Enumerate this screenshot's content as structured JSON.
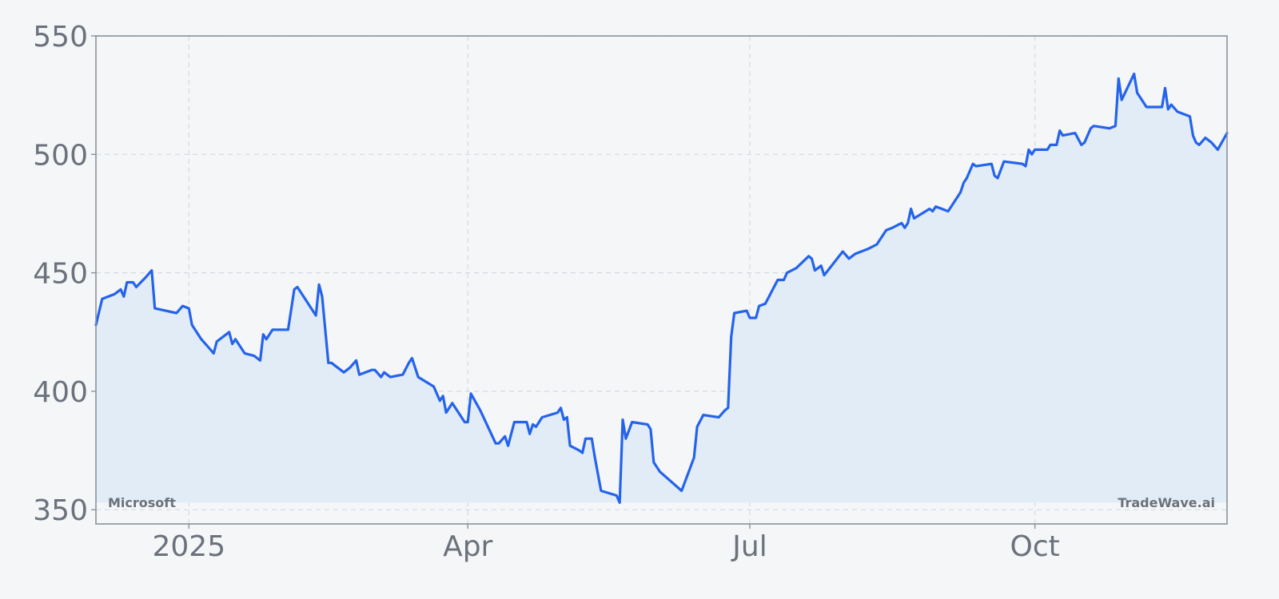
{
  "chart_data": {
    "type": "area",
    "title": "",
    "xlabel": "",
    "ylabel": "",
    "x_ticks": [
      "2025",
      "Apr",
      "Jul",
      "Oct"
    ],
    "x_tick_dates": [
      "2025-01-01",
      "2025-04-01",
      "2025-07-01",
      "2025-10-01"
    ],
    "xlim": [
      "2024-12-02",
      "2025-12-02"
    ],
    "y_ticks": [
      350,
      400,
      450,
      500,
      550
    ],
    "ylim": [
      344,
      550
    ],
    "grid": true,
    "annotations": {
      "left": "Microsoft",
      "right": "TradeWave.ai"
    },
    "colors": {
      "line": "#2563eb",
      "fill": "#e1ecf7",
      "axis": "#8a929c",
      "tick_text": "#6b727c",
      "grid": "#d4dae1",
      "background": "#f4f6f8"
    },
    "series": [
      {
        "values": [
          [
            "2024-12-02",
            428
          ],
          [
            "2024-12-04",
            439
          ],
          [
            "2024-12-08",
            441
          ],
          [
            "2024-12-10",
            443
          ],
          [
            "2024-12-11",
            440
          ],
          [
            "2024-12-12",
            446
          ],
          [
            "2024-12-14",
            446
          ],
          [
            "2024-12-15",
            444
          ],
          [
            "2024-12-18",
            448
          ],
          [
            "2024-12-20",
            451
          ],
          [
            "2024-12-21",
            435
          ],
          [
            "2024-12-28",
            433
          ],
          [
            "2024-12-30",
            436
          ],
          [
            "2025-01-01",
            435
          ],
          [
            "2025-01-02",
            428
          ],
          [
            "2025-01-05",
            422
          ],
          [
            "2025-01-07",
            419
          ],
          [
            "2025-01-09",
            416
          ],
          [
            "2025-01-10",
            421
          ],
          [
            "2025-01-14",
            425
          ],
          [
            "2025-01-15",
            420
          ],
          [
            "2025-01-16",
            422
          ],
          [
            "2025-01-19",
            416
          ],
          [
            "2025-01-22",
            415
          ],
          [
            "2025-01-24",
            413
          ],
          [
            "2025-01-25",
            424
          ],
          [
            "2025-01-26",
            422
          ],
          [
            "2025-01-28",
            426
          ],
          [
            "2025-02-02",
            426
          ],
          [
            "2025-02-04",
            443
          ],
          [
            "2025-02-05",
            444
          ],
          [
            "2025-02-11",
            432
          ],
          [
            "2025-02-12",
            445
          ],
          [
            "2025-02-13",
            440
          ],
          [
            "2025-02-15",
            412
          ],
          [
            "2025-02-16",
            412
          ],
          [
            "2025-02-20",
            408
          ],
          [
            "2025-02-22",
            410
          ],
          [
            "2025-02-24",
            413
          ],
          [
            "2025-02-25",
            407
          ],
          [
            "2025-03-01",
            409
          ],
          [
            "2025-03-02",
            409
          ],
          [
            "2025-03-04",
            406
          ],
          [
            "2025-03-05",
            408
          ],
          [
            "2025-03-07",
            406
          ],
          [
            "2025-03-11",
            407
          ],
          [
            "2025-03-13",
            412
          ],
          [
            "2025-03-14",
            414
          ],
          [
            "2025-03-16",
            406
          ],
          [
            "2025-03-21",
            402
          ],
          [
            "2025-03-23",
            396
          ],
          [
            "2025-03-24",
            398
          ],
          [
            "2025-03-25",
            391
          ],
          [
            "2025-03-27",
            395
          ],
          [
            "2025-03-31",
            387
          ],
          [
            "2025-04-01",
            387
          ],
          [
            "2025-04-02",
            399
          ],
          [
            "2025-04-05",
            392
          ],
          [
            "2025-04-10",
            378
          ],
          [
            "2025-04-11",
            378
          ],
          [
            "2025-04-13",
            381
          ],
          [
            "2025-04-14",
            377
          ],
          [
            "2025-04-16",
            387
          ],
          [
            "2025-04-20",
            387
          ],
          [
            "2025-04-21",
            382
          ],
          [
            "2025-04-22",
            386
          ],
          [
            "2025-04-23",
            385
          ],
          [
            "2025-04-25",
            389
          ],
          [
            "2025-04-30",
            391
          ],
          [
            "2025-05-01",
            393
          ],
          [
            "2025-05-02",
            388
          ],
          [
            "2025-05-03",
            389
          ],
          [
            "2025-05-04",
            377
          ],
          [
            "2025-05-07",
            375
          ],
          [
            "2025-05-08",
            374
          ],
          [
            "2025-05-09",
            380
          ],
          [
            "2025-05-11",
            380
          ],
          [
            "2025-05-12",
            372
          ],
          [
            "2025-05-14",
            358
          ],
          [
            "2025-05-19",
            356
          ],
          [
            "2025-05-20",
            353
          ],
          [
            "2025-05-21",
            388
          ],
          [
            "2025-05-22",
            380
          ],
          [
            "2025-05-24",
            387
          ],
          [
            "2025-05-29",
            386
          ],
          [
            "2025-05-30",
            384
          ],
          [
            "2025-05-31",
            370
          ],
          [
            "2025-06-02",
            366
          ],
          [
            "2025-06-09",
            358
          ],
          [
            "2025-06-13",
            372
          ],
          [
            "2025-06-14",
            385
          ],
          [
            "2025-06-16",
            390
          ],
          [
            "2025-06-21",
            389
          ],
          [
            "2025-06-23",
            392
          ],
          [
            "2025-06-24",
            393
          ],
          [
            "2025-06-25",
            423
          ],
          [
            "2025-06-26",
            433
          ],
          [
            "2025-06-30",
            434
          ],
          [
            "2025-07-01",
            431
          ],
          [
            "2025-07-03",
            431
          ],
          [
            "2025-07-04",
            436
          ],
          [
            "2025-07-06",
            437
          ],
          [
            "2025-07-10",
            447
          ],
          [
            "2025-07-12",
            447
          ],
          [
            "2025-07-13",
            450
          ],
          [
            "2025-07-16",
            452
          ],
          [
            "2025-07-20",
            457
          ],
          [
            "2025-07-21",
            456
          ],
          [
            "2025-07-22",
            451
          ],
          [
            "2025-07-24",
            453
          ],
          [
            "2025-07-25",
            449
          ],
          [
            "2025-07-31",
            459
          ],
          [
            "2025-08-02",
            456
          ],
          [
            "2025-08-04",
            458
          ],
          [
            "2025-08-08",
            460
          ],
          [
            "2025-08-11",
            462
          ],
          [
            "2025-08-14",
            468
          ],
          [
            "2025-08-16",
            469
          ],
          [
            "2025-08-19",
            471
          ],
          [
            "2025-08-20",
            469
          ],
          [
            "2025-08-21",
            471
          ],
          [
            "2025-08-22",
            477
          ],
          [
            "2025-08-23",
            473
          ],
          [
            "2025-08-28",
            477
          ],
          [
            "2025-08-29",
            476
          ],
          [
            "2025-08-30",
            478
          ],
          [
            "2025-09-03",
            476
          ],
          [
            "2025-09-07",
            484
          ],
          [
            "2025-09-08",
            488
          ],
          [
            "2025-09-09",
            490
          ],
          [
            "2025-09-11",
            496
          ],
          [
            "2025-09-12",
            495
          ],
          [
            "2025-09-17",
            496
          ],
          [
            "2025-09-18",
            491
          ],
          [
            "2025-09-19",
            490
          ],
          [
            "2025-09-21",
            497
          ],
          [
            "2025-09-27",
            496
          ],
          [
            "2025-09-28",
            495
          ],
          [
            "2025-09-29",
            502
          ],
          [
            "2025-09-30",
            500
          ],
          [
            "2025-10-01",
            502
          ],
          [
            "2025-10-05",
            502
          ],
          [
            "2025-10-06",
            504
          ],
          [
            "2025-10-08",
            504
          ],
          [
            "2025-10-09",
            510
          ],
          [
            "2025-10-10",
            508
          ],
          [
            "2025-10-14",
            509
          ],
          [
            "2025-10-16",
            504
          ],
          [
            "2025-10-17",
            505
          ],
          [
            "2025-10-19",
            511
          ],
          [
            "2025-10-20",
            512
          ],
          [
            "2025-10-25",
            511
          ],
          [
            "2025-10-27",
            512
          ],
          [
            "2025-10-28",
            532
          ],
          [
            "2025-10-29",
            523
          ],
          [
            "2025-11-02",
            534
          ],
          [
            "2025-11-03",
            526
          ],
          [
            "2025-11-04",
            524
          ],
          [
            "2025-11-06",
            520
          ],
          [
            "2025-11-07",
            520
          ],
          [
            "2025-11-11",
            520
          ],
          [
            "2025-11-12",
            528
          ],
          [
            "2025-11-13",
            519
          ],
          [
            "2025-11-14",
            521
          ],
          [
            "2025-11-16",
            518
          ],
          [
            "2025-11-20",
            516
          ],
          [
            "2025-11-21",
            508
          ],
          [
            "2025-11-22",
            505
          ],
          [
            "2025-11-23",
            504
          ],
          [
            "2025-11-25",
            507
          ],
          [
            "2025-11-27",
            505
          ],
          [
            "2025-11-29",
            502
          ],
          [
            "2025-12-02",
            509
          ]
        ]
      }
    ]
  }
}
